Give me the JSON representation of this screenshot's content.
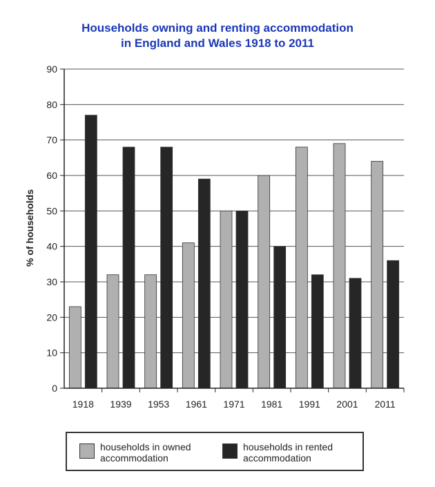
{
  "title_line1": "Households owning and renting accommodation",
  "title_line2": "in England and Wales 1918 to 2011",
  "chart_data": {
    "type": "bar",
    "title": "Households owning and renting accommodation in England and Wales 1918 to 2011",
    "xlabel": "",
    "ylabel": "% of households",
    "ylim": [
      0,
      90
    ],
    "yticks": [
      0,
      10,
      20,
      30,
      40,
      50,
      60,
      70,
      80,
      90
    ],
    "grid": true,
    "legend_position": "bottom",
    "categories": [
      "1918",
      "1939",
      "1953",
      "1961",
      "1971",
      "1981",
      "1991",
      "2001",
      "2011"
    ],
    "series": [
      {
        "name": "households in owned accommodation",
        "color": "#b0b0b0",
        "values": [
          23,
          32,
          32,
          41,
          50,
          60,
          68,
          69,
          64
        ]
      },
      {
        "name": "households in rented accommodation",
        "color": "#262626",
        "values": [
          77,
          68,
          68,
          59,
          50,
          40,
          32,
          31,
          36
        ]
      }
    ]
  }
}
